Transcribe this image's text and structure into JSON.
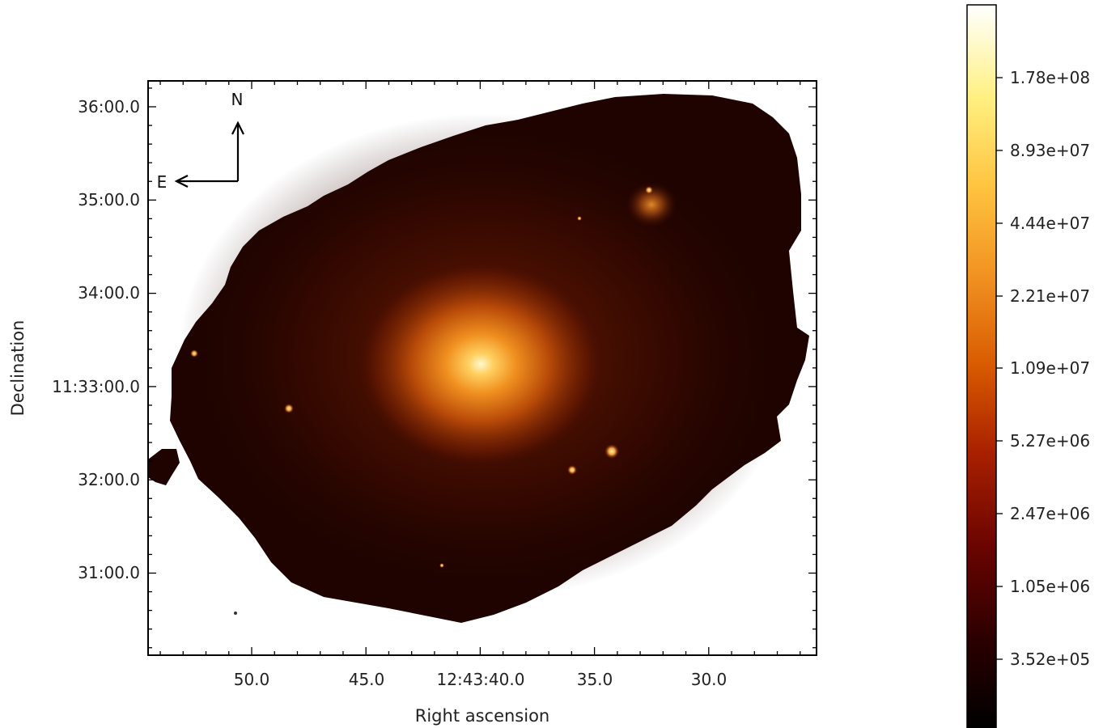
{
  "axes": {
    "xlabel": "Right ascension",
    "ylabel": "Declination",
    "xticks": [
      "50.0",
      "45.0",
      "12:43:40.0",
      "35.0",
      "30.0"
    ],
    "yticks": [
      "36:00.0",
      "35:00.0",
      "34:00.0",
      "11:33:00.0",
      "32:00.0",
      "31:00.0"
    ]
  },
  "compass": {
    "north": "N",
    "east": "E"
  },
  "colorbar": {
    "colormap": "afmhot",
    "labels": [
      "1.78e+08",
      "8.93e+07",
      "4.44e+07",
      "2.21e+07",
      "1.09e+07",
      "5.27e+06",
      "2.47e+06",
      "1.05e+06",
      "3.52e+05"
    ]
  }
}
